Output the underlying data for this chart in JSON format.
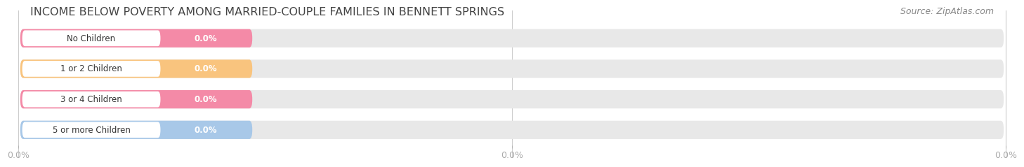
{
  "title": "INCOME BELOW POVERTY AMONG MARRIED-COUPLE FAMILIES IN BENNETT SPRINGS",
  "source": "Source: ZipAtlas.com",
  "categories": [
    "No Children",
    "1 or 2 Children",
    "3 or 4 Children",
    "5 or more Children"
  ],
  "values": [
    0.0,
    0.0,
    0.0,
    0.0
  ],
  "bar_colors": [
    "#f48aa7",
    "#f9c47e",
    "#f48aa7",
    "#a8c8e8"
  ],
  "background_color": "#ffffff",
  "bar_background": "#e8e8e8",
  "title_fontsize": 11.5,
  "source_fontsize": 9,
  "xtick_labels": [
    "0.0%",
    "0.0%",
    "0.0%"
  ]
}
